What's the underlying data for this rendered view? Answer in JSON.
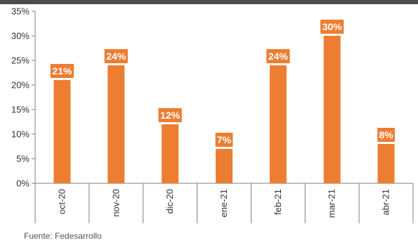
{
  "chart_data": {
    "type": "bar",
    "categories": [
      "oct-20",
      "nov-20",
      "dic-20",
      "ene-21",
      "feb-21",
      "mar-21",
      "abr-21"
    ],
    "values": [
      21,
      24,
      12,
      7,
      24,
      30,
      8
    ],
    "data_labels": [
      "21%",
      "24%",
      "12%",
      "7%",
      "24%",
      "30%",
      "8%"
    ],
    "y_ticks": [
      0,
      5,
      10,
      15,
      20,
      25,
      30,
      35
    ],
    "y_tick_labels": [
      "0%",
      "5%",
      "10%",
      "15%",
      "20%",
      "25%",
      "30%",
      "35%"
    ],
    "ylim": [
      0,
      35
    ],
    "grid": false,
    "legend": "none",
    "bar_color": "#ED7D31",
    "label_bg_color": "#ED7D31",
    "title": "",
    "xlabel": "",
    "ylabel": ""
  },
  "source_note": "Fuente: Fedesarrollo",
  "colors": {
    "top_rule": "#4d4d4d",
    "axis": "#7f7f7f",
    "text": "#333333"
  }
}
